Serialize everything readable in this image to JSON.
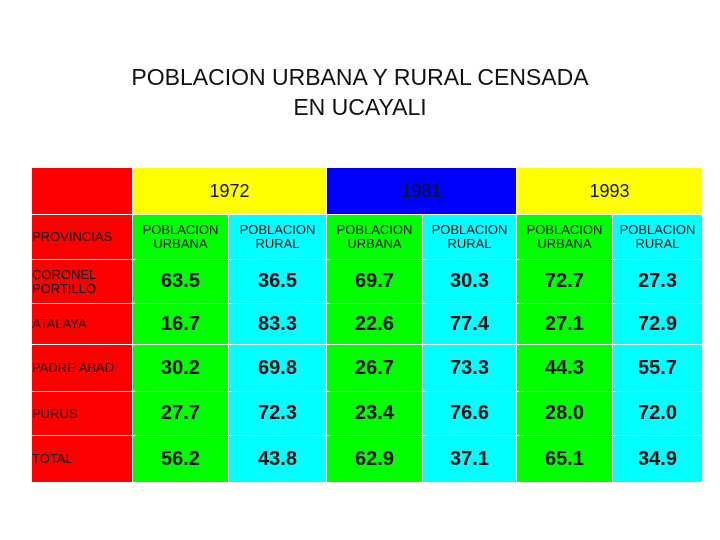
{
  "title": {
    "line1": "POBLACION URBANA Y RURAL CENSADA",
    "line2": "EN UCAYALI"
  },
  "table": {
    "corner_label": "PROVINCIAS",
    "years": [
      "1972",
      "1981",
      "1993"
    ],
    "sub_headers": [
      "POBLACION URBANA",
      "POBLACION RURAL",
      "POBLACION URBANA",
      "POBLACION RURAL",
      "POBLACION URBANA",
      "POBLACION RURAL"
    ],
    "rows": [
      {
        "province": "CORONEL PORTILLO",
        "values": [
          "63.5",
          "36.5",
          "69.7",
          "30.3",
          "72.7",
          "27.3"
        ]
      },
      {
        "province": "ATALAYA",
        "values": [
          "16.7",
          "83.3",
          "22.6",
          "77.4",
          "27.1",
          "72.9"
        ]
      },
      {
        "province": "PADRE ABAD",
        "values": [
          "30.2",
          "69.8",
          "26.7",
          "73.3",
          "44.3",
          "55.7"
        ]
      },
      {
        "province": "PURUS",
        "values": [
          "27.7",
          "72.3",
          "23.4",
          "76.6",
          "28.0",
          "72.0"
        ]
      },
      {
        "province": "TOTAL",
        "values": [
          "56.2",
          "43.8",
          "62.9",
          "37.1",
          "65.1",
          "34.9"
        ]
      }
    ]
  },
  "colors": {
    "province_column": "#ff0000",
    "urban_columns": "#00ff00",
    "rural_columns": "#00ffff",
    "year_1972": "#ffff00",
    "year_1981": "#0000ff",
    "year_1993": "#ffff00"
  }
}
